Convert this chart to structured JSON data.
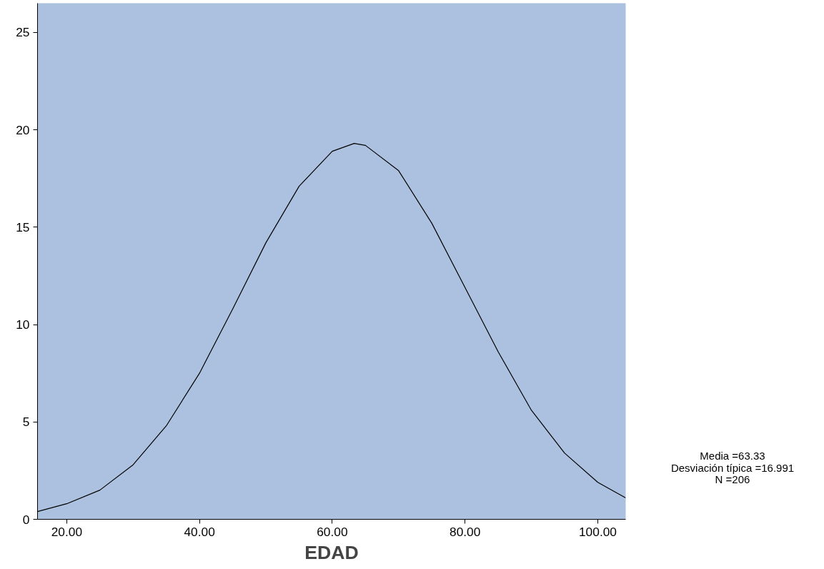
{
  "chart_data": {
    "type": "line",
    "xlabel": "EDAD",
    "x": [
      15.6,
      20,
      25,
      30,
      35,
      40,
      45,
      50,
      55,
      60,
      63.3,
      65,
      70,
      75,
      80,
      85,
      90,
      95,
      100,
      104.2
    ],
    "series": [
      {
        "color": "#000000",
        "values": [
          0.4,
          0.8,
          1.5,
          2.8,
          4.8,
          7.5,
          10.8,
          14.2,
          17.1,
          18.9,
          19.3,
          19.2,
          17.9,
          15.2,
          11.9,
          8.6,
          5.6,
          3.4,
          1.9,
          1.1
        ]
      }
    ],
    "xlim": [
      15.6,
      104.2
    ],
    "ylim": [
      0,
      26.5
    ],
    "xticks": [
      {
        "value": 20,
        "label": "20.00"
      },
      {
        "value": 40,
        "label": "40.00"
      },
      {
        "value": 60,
        "label": "60.00"
      },
      {
        "value": 80,
        "label": "80.00"
      },
      {
        "value": 100,
        "label": "100.00"
      }
    ],
    "yticks": [
      0,
      5,
      10,
      15,
      20,
      25
    ],
    "grid": false,
    "annotations": [
      "Media =63.33",
      "Desviación típica =16.991",
      "N =206"
    ]
  }
}
